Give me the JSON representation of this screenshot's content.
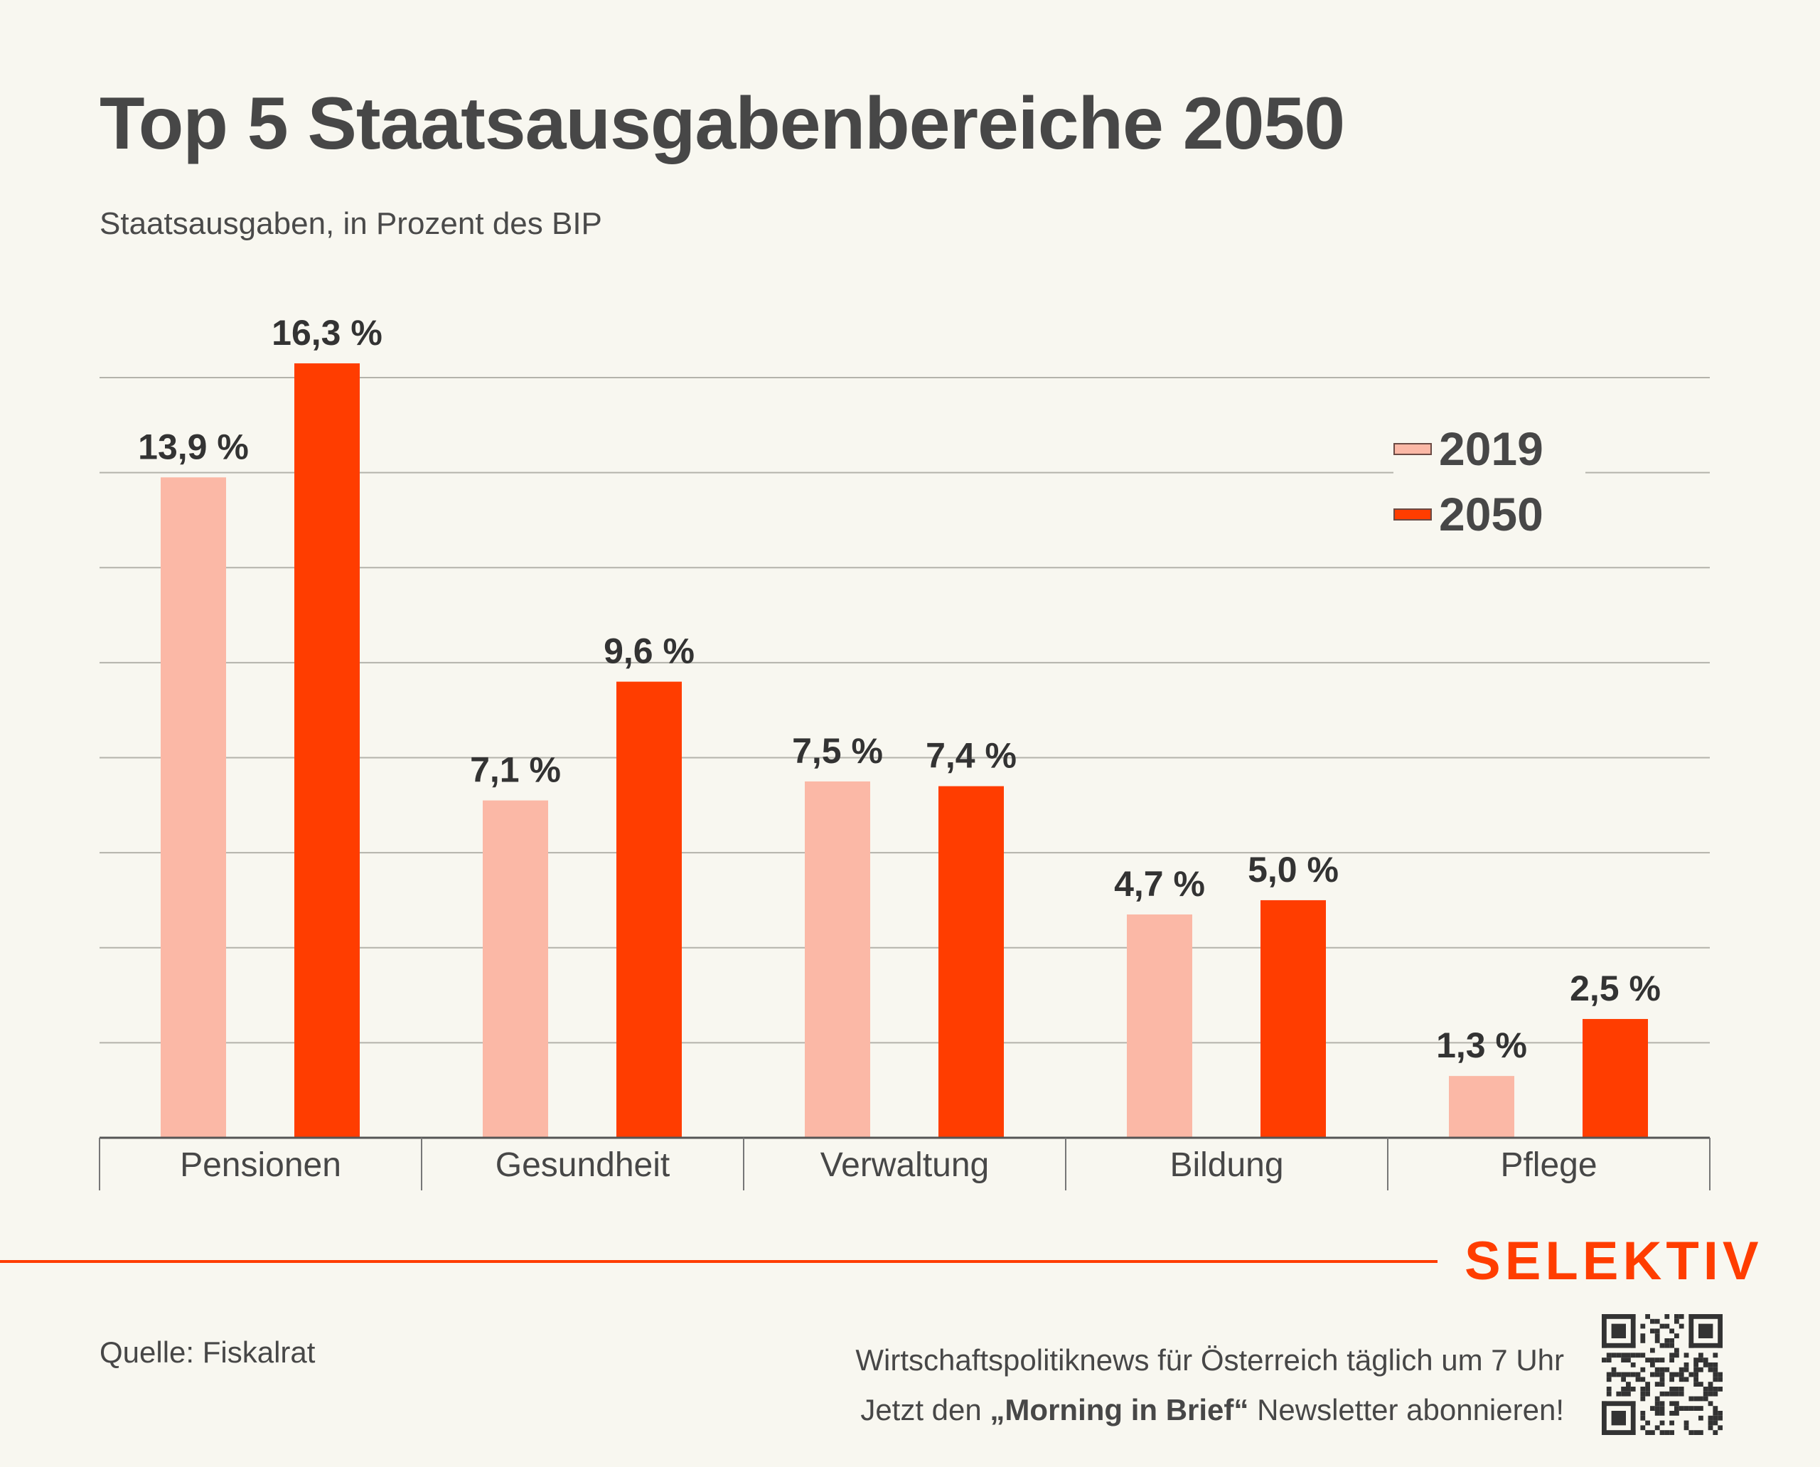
{
  "header": {
    "title": "Top 5 Staatsausgabenbereiche 2050",
    "subtitle": "Staatsausgaben, in Prozent des BIP"
  },
  "legend": {
    "items": [
      {
        "label": "2019",
        "color": "#fbb8a6"
      },
      {
        "label": "2050",
        "color": "#ff3d00"
      }
    ]
  },
  "chart_data": {
    "type": "bar",
    "title": "Top 5 Staatsausgabenbereiche 2050",
    "subtitle": "Staatsausgaben, in Prozent des BIP",
    "xlabel": "",
    "ylabel": "",
    "ylim": [
      0,
      16
    ],
    "grid": true,
    "grid_step": 2,
    "legend_position": "top-right",
    "categories": [
      "Pensionen",
      "Gesundheit",
      "Verwaltung",
      "Bildung",
      "Pflege"
    ],
    "series": [
      {
        "name": "2019",
        "color": "#fbb8a6",
        "values": [
          13.9,
          7.1,
          7.5,
          4.7,
          1.3
        ],
        "labels": [
          "13,9 %",
          "7,1 %",
          "7,5 %",
          "4,7 %",
          "1,3 %"
        ]
      },
      {
        "name": "2050",
        "color": "#ff3d00",
        "values": [
          16.3,
          9.6,
          7.4,
          5.0,
          2.5
        ],
        "labels": [
          "16,3 %",
          "9,6 %",
          "7,4 %",
          "5,0 %",
          "2,5 %"
        ]
      }
    ]
  },
  "footer": {
    "brand": "SELEKTIV",
    "brand_color": "#ff3d00",
    "source": "Quelle: Fiskalrat",
    "promo_line1": "Wirtschaftspolitiknews für Österreich täglich um 7 Uhr",
    "promo_line2_pre": "Jetzt den ",
    "promo_line2_bold": "„Morning in Brief“",
    "promo_line2_post": " Newsletter abonnieren!",
    "qr_icon": "qr-code-icon"
  }
}
